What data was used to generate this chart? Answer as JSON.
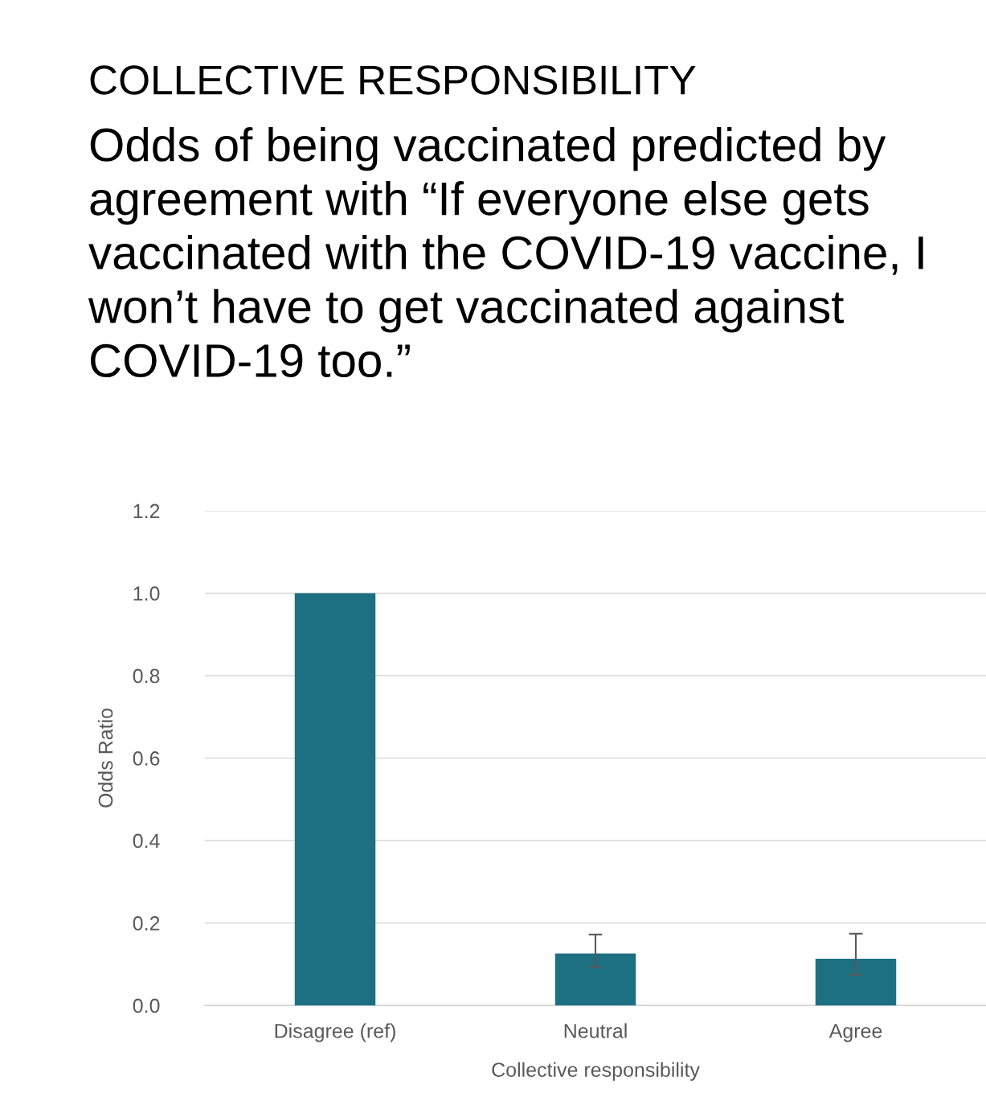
{
  "chart_data": {
    "type": "bar",
    "title": "COLLECTIVE RESPONSIBILITY",
    "subtitle": "Odds of being vaccinated predicted by\nagreement with “If everyone else gets\nvaccinated with the COVID-19 vaccine, I\nwon’t have to get vaccinated against\nCOVID-19 too.”",
    "categories": [
      "Disagree (ref)",
      "Neutral",
      "Agree"
    ],
    "values": [
      1.0,
      0.126,
      0.113
    ],
    "errors": [
      null,
      [
        0.093,
        0.172
      ],
      [
        0.074,
        0.174
      ]
    ],
    "color": "#1d6f82",
    "xlabel": "Collective responsibility",
    "ylabel": "Odds Ratio",
    "ylim": [
      0,
      1.2
    ],
    "yticks": [
      {
        "value": 0,
        "label": "0.0"
      },
      {
        "value": 0.2,
        "label": "0.2"
      },
      {
        "value": 0.4,
        "label": "0.4"
      },
      {
        "value": 0.6,
        "label": "0.6"
      },
      {
        "value": 0.8,
        "label": "0.8"
      },
      {
        "value": 1.0,
        "label": "1.0"
      },
      {
        "value": 1.2,
        "label": "1.2"
      }
    ],
    "grid": "y"
  }
}
